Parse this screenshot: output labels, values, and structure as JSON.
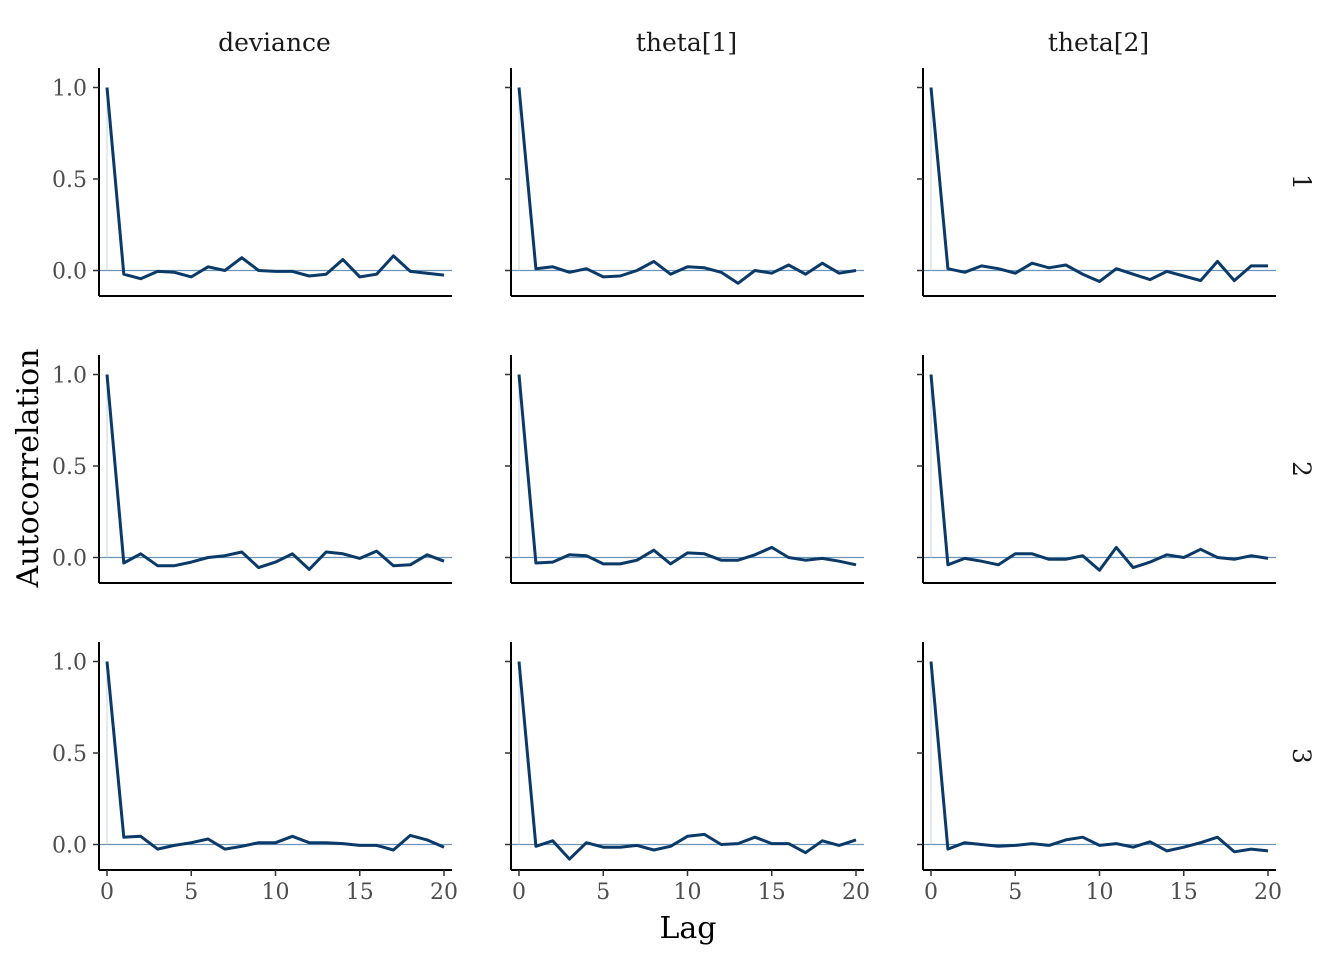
{
  "chart_data": {
    "type": "line",
    "xlabel": "Lag",
    "ylabel": "Autocorrelation",
    "columns": [
      "deviance",
      "theta[1]",
      "theta[2]"
    ],
    "rows": [
      "1",
      "2",
      "3"
    ],
    "xlim": [
      0,
      20
    ],
    "ylim": [
      -0.14,
      1.1
    ],
    "x_ticks": [
      0,
      5,
      10,
      15,
      20
    ],
    "y_ticks": [
      "0.0",
      "0.5",
      "1.0"
    ],
    "line_color": "#0b3a68",
    "zero_line_color": "#6a95b8",
    "lag": [
      0,
      1,
      2,
      3,
      4,
      5,
      6,
      7,
      8,
      9,
      10,
      11,
      12,
      13,
      14,
      15,
      16,
      17,
      18,
      19,
      20
    ],
    "panels": [
      {
        "column": "deviance",
        "row": "1",
        "values": [
          1.0,
          -0.02,
          -0.045,
          -0.005,
          -0.01,
          -0.035,
          0.02,
          0.0,
          0.07,
          0.0,
          -0.005,
          -0.005,
          -0.03,
          -0.02,
          0.06,
          -0.035,
          -0.02,
          0.08,
          -0.005,
          -0.015,
          -0.025
        ]
      },
      {
        "column": "theta[1]",
        "row": "1",
        "values": [
          1.0,
          0.01,
          0.02,
          -0.01,
          0.01,
          -0.035,
          -0.03,
          0.0,
          0.05,
          -0.02,
          0.02,
          0.015,
          -0.01,
          -0.07,
          0.0,
          -0.015,
          0.03,
          -0.02,
          0.04,
          -0.015,
          0.0
        ]
      },
      {
        "column": "theta[2]",
        "row": "1",
        "values": [
          1.0,
          0.01,
          -0.01,
          0.025,
          0.01,
          -0.015,
          0.04,
          0.015,
          0.03,
          -0.02,
          -0.06,
          0.01,
          -0.02,
          -0.05,
          -0.005,
          -0.03,
          -0.055,
          0.05,
          -0.055,
          0.025,
          0.025
        ]
      },
      {
        "column": "deviance",
        "row": "2",
        "values": [
          1.0,
          -0.03,
          0.02,
          -0.045,
          -0.045,
          -0.025,
          0.0,
          0.01,
          0.03,
          -0.055,
          -0.025,
          0.02,
          -0.065,
          0.03,
          0.02,
          -0.005,
          0.035,
          -0.045,
          -0.04,
          0.015,
          -0.02
        ]
      },
      {
        "column": "theta[1]",
        "row": "2",
        "values": [
          1.0,
          -0.03,
          -0.025,
          0.015,
          0.01,
          -0.035,
          -0.035,
          -0.015,
          0.04,
          -0.035,
          0.025,
          0.02,
          -0.015,
          -0.015,
          0.015,
          0.055,
          0.0,
          -0.015,
          -0.005,
          -0.02,
          -0.04
        ]
      },
      {
        "column": "theta[2]",
        "row": "2",
        "values": [
          1.0,
          -0.04,
          -0.005,
          -0.02,
          -0.04,
          0.02,
          0.02,
          -0.01,
          -0.01,
          0.01,
          -0.07,
          0.055,
          -0.055,
          -0.025,
          0.015,
          0.0,
          0.045,
          0.0,
          -0.01,
          0.01,
          -0.005
        ]
      },
      {
        "column": "deviance",
        "row": "3",
        "values": [
          1.0,
          0.04,
          0.045,
          -0.025,
          -0.005,
          0.01,
          0.03,
          -0.025,
          -0.01,
          0.01,
          0.01,
          0.045,
          0.01,
          0.01,
          0.005,
          -0.005,
          -0.005,
          -0.03,
          0.05,
          0.025,
          -0.015
        ]
      },
      {
        "column": "theta[1]",
        "row": "3",
        "values": [
          1.0,
          -0.01,
          0.02,
          -0.08,
          0.01,
          -0.015,
          -0.015,
          -0.005,
          -0.03,
          -0.01,
          0.045,
          0.055,
          0.0,
          0.005,
          0.04,
          0.005,
          0.005,
          -0.045,
          0.02,
          -0.005,
          0.025
        ]
      },
      {
        "column": "theta[2]",
        "row": "3",
        "values": [
          1.0,
          -0.025,
          0.01,
          0.0,
          -0.01,
          -0.005,
          0.005,
          -0.005,
          0.025,
          0.04,
          -0.005,
          0.005,
          -0.015,
          0.015,
          -0.035,
          -0.015,
          0.01,
          0.04,
          -0.04,
          -0.025,
          -0.035
        ]
      }
    ]
  }
}
